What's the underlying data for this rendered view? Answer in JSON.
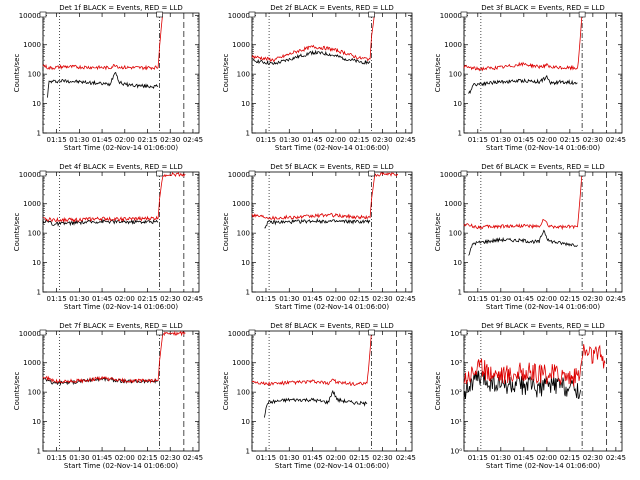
{
  "chart_data": [
    {
      "type": "line",
      "title": "Det 1f BLACK = Events, RED = LLD",
      "xlabel": "Start Time (02-Nov-14 01:06:00)",
      "ylabel": "Counts/sec",
      "yscale": "log",
      "ytick_labels": [
        "1",
        "10",
        "100",
        "1000",
        "10000"
      ],
      "xtick_labels": [
        "01:15",
        "01:30",
        "01:45",
        "02:00",
        "02:15",
        "02:30",
        "02:45"
      ],
      "xlim": [
        "01:06",
        "02:49"
      ],
      "ylim": [
        1,
        12000
      ],
      "vlines": [
        "01:06",
        "01:17",
        "02:23",
        "02:39"
      ],
      "series": [
        {
          "name": "BLACK = Events",
          "color": "#000000",
          "x": [
            "01:09",
            "01:10",
            "01:20",
            "01:40",
            "01:50",
            "01:54",
            "01:56",
            "02:00",
            "02:10",
            "02:22"
          ],
          "y": [
            18,
            55,
            60,
            50,
            45,
            130,
            55,
            45,
            40,
            38
          ]
        },
        {
          "name": "RED = LLD",
          "color": "#dd0000",
          "x": [
            "01:06",
            "01:10",
            "01:20",
            "01:40",
            "01:50",
            "01:54",
            "01:56",
            "02:00",
            "02:10",
            "02:22",
            "02:23",
            "02:25"
          ],
          "y": [
            200,
            160,
            180,
            170,
            165,
            210,
            175,
            170,
            165,
            170,
            900,
            12000
          ]
        }
      ]
    },
    {
      "type": "line",
      "title": "Det 2f BLACK = Events, RED = LLD",
      "xlabel": "Start Time (02-Nov-14 01:06:00)",
      "ylabel": "Counts/sec",
      "yscale": "log",
      "ytick_labels": [
        "1",
        "10",
        "100",
        "1000",
        "10000"
      ],
      "xtick_labels": [
        "01:15",
        "01:30",
        "01:45",
        "02:00",
        "02:15",
        "02:30",
        "02:45"
      ],
      "xlim": [
        "01:06",
        "02:49"
      ],
      "ylim": [
        1,
        12000
      ],
      "vlines": [
        "01:06",
        "01:17",
        "02:23",
        "02:39"
      ],
      "series": [
        {
          "name": "BLACK = Events",
          "color": "#000000",
          "x": [
            "01:06",
            "01:20",
            "01:35",
            "01:45",
            "01:55",
            "02:05",
            "02:15",
            "02:22"
          ],
          "y": [
            300,
            220,
            380,
            550,
            480,
            350,
            260,
            250
          ]
        },
        {
          "name": "RED = LLD",
          "color": "#dd0000",
          "x": [
            "01:06",
            "01:20",
            "01:35",
            "01:45",
            "01:55",
            "02:05",
            "02:15",
            "02:22",
            "02:23",
            "02:25"
          ],
          "y": [
            400,
            300,
            600,
            850,
            750,
            550,
            350,
            330,
            2000,
            12000
          ]
        }
      ]
    },
    {
      "type": "line",
      "title": "Det 3f BLACK = Events, RED = LLD",
      "xlabel": "Start Time (02-Nov-14 01:06:00)",
      "ylabel": "Counts/sec",
      "yscale": "log",
      "ytick_labels": [
        "1",
        "10",
        "100",
        "1000",
        "10000"
      ],
      "xtick_labels": [
        "01:15",
        "01:30",
        "01:45",
        "02:00",
        "02:15",
        "02:30",
        "02:45"
      ],
      "xlim": [
        "01:06",
        "02:49"
      ],
      "ylim": [
        1,
        12000
      ],
      "vlines": [
        "01:06",
        "01:17",
        "02:23",
        "02:39"
      ],
      "series": [
        {
          "name": "BLACK = Events",
          "color": "#000000",
          "x": [
            "01:09",
            "01:12",
            "01:30",
            "01:45",
            "01:55",
            "02:00",
            "02:02",
            "02:10",
            "02:20"
          ],
          "y": [
            20,
            45,
            55,
            60,
            55,
            80,
            50,
            55,
            50
          ]
        },
        {
          "name": "RED = LLD",
          "color": "#dd0000",
          "x": [
            "01:06",
            "01:15",
            "01:30",
            "01:45",
            "01:55",
            "02:00",
            "02:02",
            "02:10",
            "02:20",
            "02:21",
            "02:23"
          ],
          "y": [
            180,
            150,
            170,
            220,
            180,
            200,
            170,
            165,
            160,
            500,
            12000
          ]
        }
      ]
    },
    {
      "type": "line",
      "title": "Det 4f BLACK = Events, RED = LLD",
      "xlabel": "Start Time (02-Nov-14 01:06:00)",
      "ylabel": "Counts/sec",
      "yscale": "log",
      "ytick_labels": [
        "1",
        "10",
        "100",
        "1000",
        "10000"
      ],
      "xtick_labels": [
        "01:15",
        "01:30",
        "01:45",
        "02:00",
        "02:15",
        "02:30",
        "02:45"
      ],
      "xlim": [
        "01:06",
        "02:49"
      ],
      "ylim": [
        1,
        12000
      ],
      "vlines": [
        "01:06",
        "01:17",
        "02:23",
        "02:39"
      ],
      "series": [
        {
          "name": "BLACK = Events",
          "color": "#000000",
          "x": [
            "01:06",
            "01:11",
            "01:12",
            "01:30",
            "01:45",
            "02:00",
            "02:22"
          ],
          "y": [
            260,
            240,
            200,
            230,
            250,
            240,
            245
          ]
        },
        {
          "name": "RED = LLD",
          "color": "#dd0000",
          "x": [
            "01:06",
            "01:15",
            "01:30",
            "01:45",
            "02:00",
            "02:22",
            "02:23",
            "02:25",
            "02:28",
            "02:40"
          ],
          "y": [
            300,
            280,
            290,
            310,
            300,
            320,
            1500,
            9000,
            10000,
            10000
          ]
        }
      ]
    },
    {
      "type": "line",
      "title": "Det 5f BLACK = Events, RED = LLD",
      "xlabel": "Start Time (02-Nov-14 01:06:00)",
      "ylabel": "Counts/sec",
      "yscale": "log",
      "ytick_labels": [
        "1",
        "10",
        "100",
        "1000",
        "10000"
      ],
      "xtick_labels": [
        "01:15",
        "01:30",
        "01:45",
        "02:00",
        "02:15",
        "02:30",
        "02:45"
      ],
      "xlim": [
        "01:06",
        "02:49"
      ],
      "ylim": [
        1,
        12000
      ],
      "vlines": [
        "01:06",
        "01:17",
        "02:23",
        "02:39"
      ],
      "series": [
        {
          "name": "BLACK = Events",
          "color": "#000000",
          "x": [
            "01:14",
            "01:16",
            "01:30",
            "01:45",
            "02:00",
            "02:15",
            "02:22"
          ],
          "y": [
            150,
            230,
            240,
            260,
            250,
            245,
            250
          ]
        },
        {
          "name": "RED = LLD",
          "color": "#dd0000",
          "x": [
            "01:06",
            "01:20",
            "01:40",
            "01:55",
            "02:10",
            "02:22",
            "02:23",
            "02:25",
            "02:28",
            "02:40"
          ],
          "y": [
            420,
            330,
            360,
            420,
            360,
            340,
            1500,
            9000,
            10000,
            10000
          ]
        }
      ]
    },
    {
      "type": "line",
      "title": "Det 6f BLACK = Events, RED = LLD",
      "xlabel": "Start Time (02-Nov-14 01:06:00)",
      "ylabel": "Counts/sec",
      "yscale": "log",
      "ytick_labels": [
        "1",
        "10",
        "100",
        "1000",
        "10000"
      ],
      "xtick_labels": [
        "01:15",
        "01:30",
        "01:45",
        "02:00",
        "02:15",
        "02:30",
        "02:45"
      ],
      "xlim": [
        "01:06",
        "02:49"
      ],
      "ylim": [
        1,
        12000
      ],
      "vlines": [
        "01:06",
        "01:17",
        "02:23",
        "02:39"
      ],
      "series": [
        {
          "name": "BLACK = Events",
          "color": "#000000",
          "x": [
            "01:09",
            "01:12",
            "01:30",
            "01:45",
            "01:55",
            "01:58",
            "02:01",
            "02:10",
            "02:20"
          ],
          "y": [
            18,
            45,
            60,
            55,
            50,
            130,
            55,
            45,
            40
          ]
        },
        {
          "name": "RED = LLD",
          "color": "#dd0000",
          "x": [
            "01:06",
            "01:15",
            "01:30",
            "01:45",
            "01:55",
            "01:58",
            "02:01",
            "02:10",
            "02:20",
            "02:21",
            "02:23"
          ],
          "y": [
            200,
            160,
            170,
            180,
            160,
            300,
            170,
            160,
            165,
            600,
            12000
          ]
        }
      ]
    },
    {
      "type": "line",
      "title": "Det 7f BLACK = Events, RED = LLD",
      "xlabel": "Start Time (02-Nov-14 01:06:00)",
      "ylabel": "Counts/sec",
      "yscale": "log",
      "ytick_labels": [
        "1",
        "10",
        "100",
        "1000",
        "10000"
      ],
      "xtick_labels": [
        "01:15",
        "01:30",
        "01:45",
        "02:00",
        "02:15",
        "02:30",
        "02:45"
      ],
      "xlim": [
        "01:06",
        "02:49"
      ],
      "ylim": [
        1,
        12000
      ],
      "vlines": [
        "01:06",
        "01:17",
        "02:23",
        "02:39"
      ],
      "series": [
        {
          "name": "BLACK = Events",
          "color": "#000000",
          "x": [
            "01:06",
            "01:11",
            "01:12",
            "01:30",
            "01:45",
            "02:00",
            "02:22"
          ],
          "y": [
            300,
            250,
            200,
            230,
            290,
            230,
            240
          ]
        },
        {
          "name": "RED = LLD",
          "color": "#dd0000",
          "x": [
            "01:06",
            "01:15",
            "01:30",
            "01:45",
            "02:00",
            "02:22",
            "02:23",
            "02:25",
            "02:28",
            "02:40"
          ],
          "y": [
            330,
            230,
            240,
            300,
            240,
            250,
            1200,
            9000,
            10000,
            10000
          ]
        }
      ]
    },
    {
      "type": "line",
      "title": "Det 8f BLACK = Events, RED = LLD",
      "xlabel": "Start Time (02-Nov-14 01:06:00)",
      "ylabel": "Counts/sec",
      "yscale": "log",
      "ytick_labels": [
        "1",
        "10",
        "100",
        "1000",
        "10000"
      ],
      "xtick_labels": [
        "01:15",
        "01:30",
        "01:45",
        "02:00",
        "02:15",
        "02:30",
        "02:45"
      ],
      "xlim": [
        "01:06",
        "02:49"
      ],
      "ylim": [
        1,
        12000
      ],
      "vlines": [
        "01:06",
        "01:17",
        "02:23",
        "02:39"
      ],
      "series": [
        {
          "name": "BLACK = Events",
          "color": "#000000",
          "x": [
            "01:14",
            "01:16",
            "01:30",
            "01:45",
            "01:55",
            "01:58",
            "02:01",
            "02:10",
            "02:20"
          ],
          "y": [
            15,
            45,
            55,
            55,
            45,
            110,
            55,
            45,
            40
          ]
        },
        {
          "name": "RED = LLD",
          "color": "#dd0000",
          "x": [
            "01:06",
            "01:15",
            "01:30",
            "01:45",
            "01:55",
            "01:58",
            "02:01",
            "02:10",
            "02:20",
            "02:21",
            "02:23"
          ],
          "y": [
            240,
            190,
            210,
            230,
            200,
            280,
            210,
            190,
            190,
            600,
            12000
          ]
        }
      ]
    },
    {
      "type": "line",
      "title": "Det 9f BLACK = Events, RED = LLD",
      "xlabel": "Start Time (02-Nov-14 01:06:00)",
      "ylabel": "Counts/sec",
      "yscale": "log",
      "ytick_labels": [
        "10<sup>0</sup>",
        "10<sup>1</sup>",
        "10<sup>2</sup>",
        "10<sup>3</sup>",
        "10<sup>4</sup>"
      ],
      "ytick_text": [
        "10⁰",
        "10¹",
        "10²",
        "10³",
        "10⁴"
      ],
      "xtick_labels": [
        "01:15",
        "01:30",
        "01:45",
        "02:00",
        "02:15",
        "02:30",
        "02:45"
      ],
      "xlim": [
        "01:06",
        "02:49"
      ],
      "ylim": [
        1,
        12000
      ],
      "vlines": [
        "01:06",
        "01:17",
        "02:23",
        "02:39"
      ],
      "series": [
        {
          "name": "BLACK = Events",
          "color": "#000000",
          "x": [
            "01:06",
            "01:15",
            "01:25",
            "01:35",
            "01:45",
            "01:55",
            "02:05",
            "02:15",
            "02:22"
          ],
          "y": [
            110,
            300,
            200,
            160,
            180,
            140,
            190,
            150,
            120
          ]
        },
        {
          "name": "RED = LLD",
          "color": "#dd0000",
          "x": [
            "01:06",
            "01:15",
            "01:25",
            "01:35",
            "01:45",
            "01:55",
            "02:05",
            "02:15",
            "02:20",
            "02:22",
            "02:24",
            "02:30",
            "02:36",
            "02:38"
          ],
          "y": [
            300,
            700,
            450,
            400,
            500,
            380,
            450,
            350,
            300,
            700,
            2600,
            1800,
            1900,
            1000
          ]
        }
      ]
    }
  ]
}
